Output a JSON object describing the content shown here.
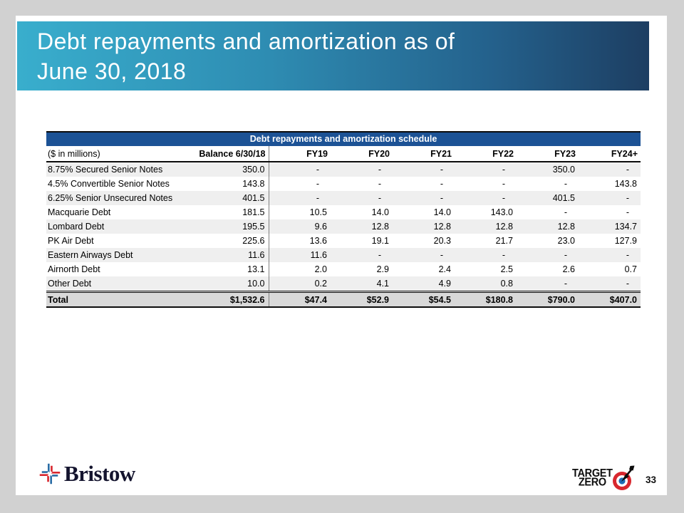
{
  "slide": {
    "title_line1": "Debt repayments and amortization as of",
    "title_line2": "June 30, 2018"
  },
  "table": {
    "title": "Debt repayments and amortization schedule",
    "unit_label": "($ in millions)",
    "columns": [
      "Balance 6/30/18",
      "FY19",
      "FY20",
      "FY21",
      "FY22",
      "FY23",
      "FY24+"
    ],
    "rows": [
      {
        "label": "8.75% Secured Senior Notes",
        "values": [
          "350.0",
          "-",
          "-",
          "-",
          "-",
          "350.0",
          "-"
        ]
      },
      {
        "label": "4.5% Convertible Senior Notes",
        "values": [
          "143.8",
          "-",
          "-",
          "-",
          "-",
          "-",
          "143.8"
        ]
      },
      {
        "label": "6.25% Senior Unsecured Notes",
        "values": [
          "401.5",
          "-",
          "-",
          "-",
          "-",
          "401.5",
          "-"
        ]
      },
      {
        "label": "Macquarie Debt",
        "values": [
          "181.5",
          "10.5",
          "14.0",
          "14.0",
          "143.0",
          "-",
          "-"
        ]
      },
      {
        "label": "Lombard Debt",
        "values": [
          "195.5",
          "9.6",
          "12.8",
          "12.8",
          "12.8",
          "12.8",
          "134.7"
        ]
      },
      {
        "label": "PK Air Debt",
        "values": [
          "225.6",
          "13.6",
          "19.1",
          "20.3",
          "21.7",
          "23.0",
          "127.9"
        ]
      },
      {
        "label": "Eastern Airways Debt",
        "values": [
          "11.6",
          "11.6",
          "-",
          "-",
          "-",
          "-",
          "-"
        ]
      },
      {
        "label": "Airnorth Debt",
        "values": [
          "13.1",
          "2.0",
          "2.9",
          "2.4",
          "2.5",
          "2.6",
          "0.7"
        ]
      },
      {
        "label": "Other Debt",
        "values": [
          "10.0",
          "0.2",
          "4.1",
          "4.9",
          "0.8",
          "-",
          "-"
        ]
      }
    ],
    "total_row": {
      "label": "Total",
      "values": [
        "$1,532.6",
        "$47.4",
        "$52.9",
        "$54.5",
        "$180.8",
        "$790.0",
        "$407.0"
      ]
    }
  },
  "footer": {
    "brand_name": "Bristow",
    "badge_line1": "TARGET",
    "badge_line2": "ZERO",
    "page_number": "33"
  },
  "colors": {
    "page_bg": "#d1d1d1",
    "banner_gradient_left": "#39aecd",
    "banner_gradient_right": "#1d3e62",
    "table_title_bg": "#1c5295",
    "row_stripe": "#efefef",
    "total_row_bg": "#d9d9d9",
    "logo_red": "#d8272e",
    "logo_blue": "#2a6ca5"
  }
}
